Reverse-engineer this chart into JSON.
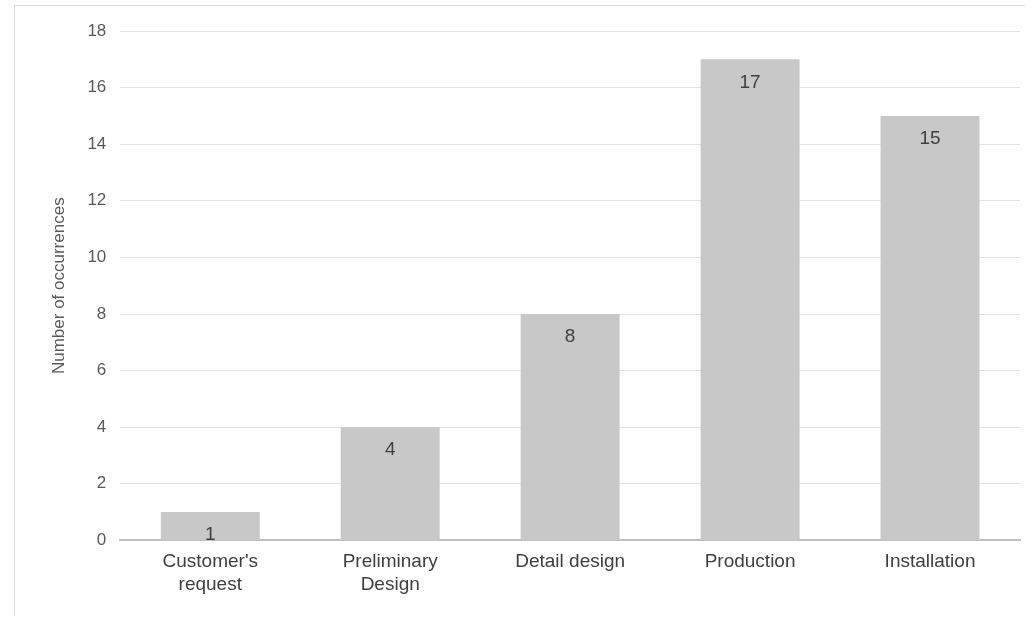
{
  "chart_data": {
    "type": "bar",
    "ylabel": "Number of occurrences",
    "categories": [
      "Customer's request",
      "Preliminary Design",
      "Detail design",
      "Production",
      "Installation"
    ],
    "values": [
      1,
      4,
      8,
      17,
      15
    ],
    "color": "#c8c8c8",
    "ylim": [
      0,
      18
    ],
    "yticks": [
      0,
      2,
      4,
      6,
      8,
      10,
      12,
      14,
      16,
      18
    ],
    "grid": "y",
    "data_labels": true,
    "legend": false
  }
}
